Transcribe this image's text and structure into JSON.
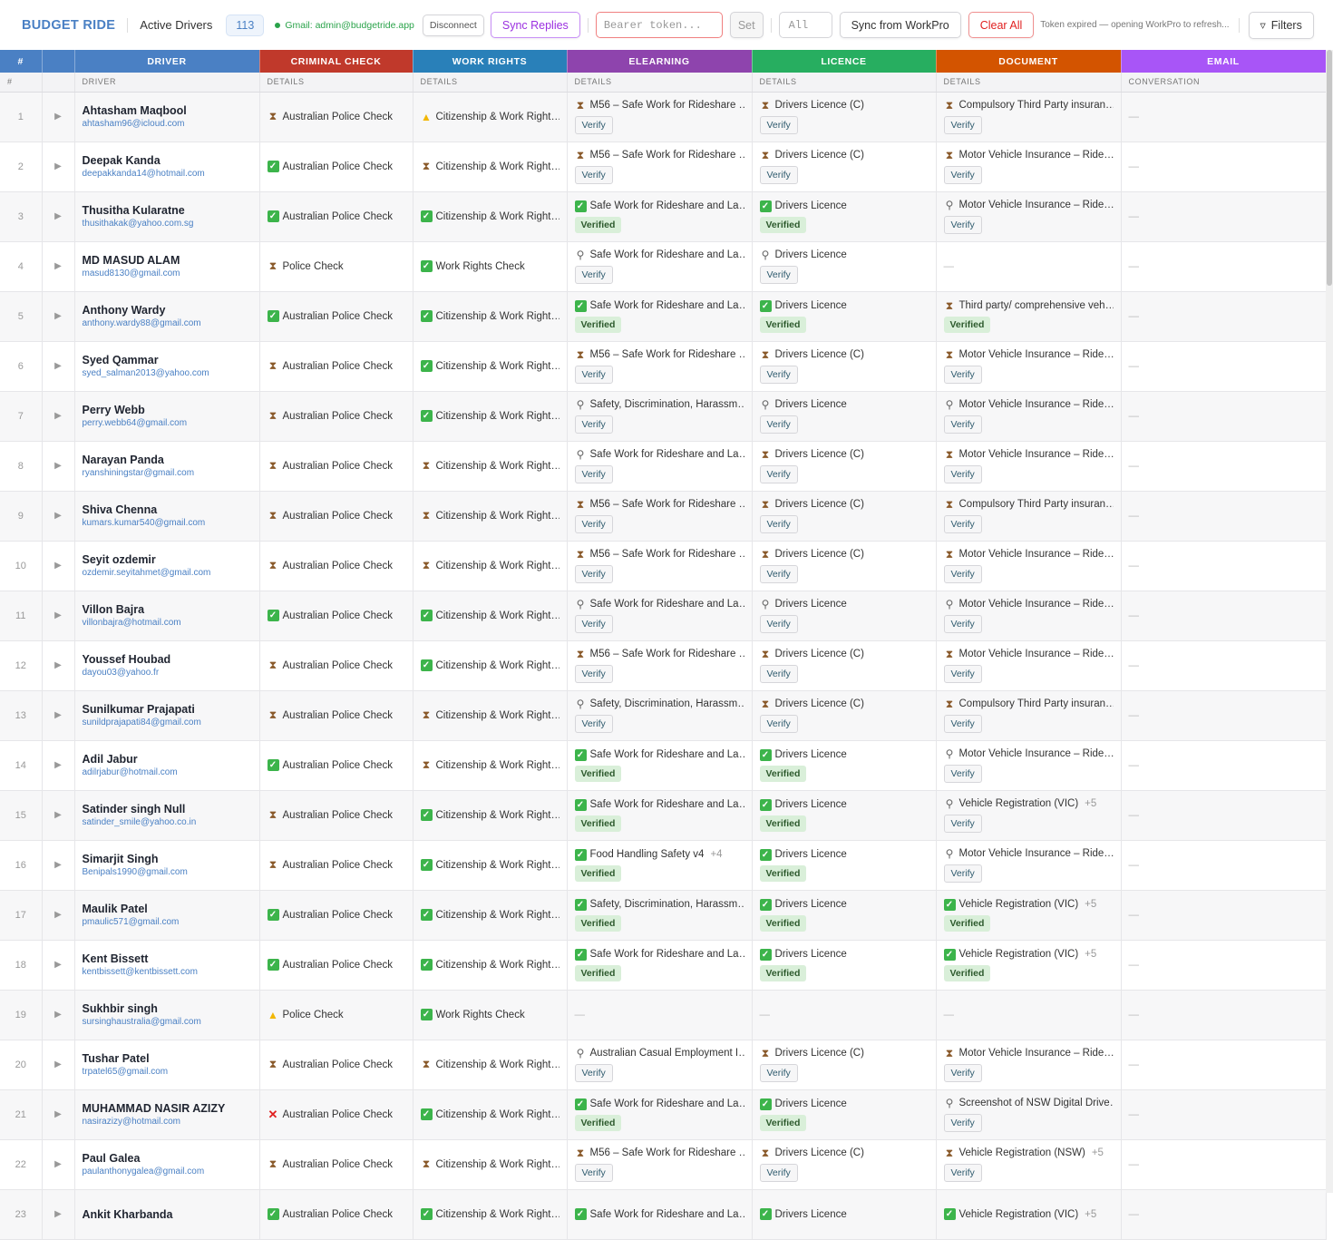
{
  "toolbar": {
    "brand": "BUDGET RIDE",
    "title": "Active Drivers",
    "count": "113",
    "gmail": "Gmail: admin@budgetride.app",
    "disconnect": "Disconnect",
    "sync_replies": "Sync Replies",
    "token_placeholder": "Bearer token...",
    "set": "Set",
    "filter_value": "All",
    "sync_workpro": "Sync from WorkPro",
    "clear_all": "Clear All",
    "status_note": "Token expired — opening WorkPro to refresh...",
    "filters": "Filters"
  },
  "colors": {
    "num": "#4a80c4",
    "driver": "#4a80c4",
    "criminal": "#c0392b",
    "work": "#2980b9",
    "elearning": "#8e44ad",
    "licence": "#27ae60",
    "document": "#d35400",
    "email": "#a855f7"
  },
  "groups": [
    "#",
    "",
    "DRIVER",
    "CRIMINAL CHECK",
    "WORK RIGHTS",
    "ELEARNING",
    "LICENCE",
    "DOCUMENT",
    "EMAIL"
  ],
  "subheaders": [
    "#",
    "",
    "DRIVER",
    "DETAILS",
    "DETAILS",
    "DETAILS",
    "DETAILS",
    "DETAILS",
    "CONVERSATION"
  ],
  "empty": "—",
  "rows": [
    {
      "n": "1",
      "name": "Ahtasham Maqbool",
      "email": "ahtasham96@icloud.com",
      "crim": {
        "s": "pending",
        "t": "Australian Police Check"
      },
      "work": {
        "s": "warn",
        "t": "Citizenship & Work Right…"
      },
      "el": {
        "s": "pending",
        "t": "M56 – Safe Work for Rideshare …",
        "a": "Verify"
      },
      "lic": {
        "s": "pending",
        "t": "Drivers Licence (C)",
        "a": "Verify"
      },
      "doc": {
        "s": "pending",
        "t": "Compulsory Third Party insuran…",
        "a": "Verify"
      }
    },
    {
      "n": "2",
      "name": "Deepak Kanda",
      "email": "deepakkanda14@hotmail.com",
      "crim": {
        "s": "ok",
        "t": "Australian Police Check"
      },
      "work": {
        "s": "pending",
        "t": "Citizenship & Work Right…"
      },
      "el": {
        "s": "pending",
        "t": "M56 – Safe Work for Rideshare …",
        "a": "Verify"
      },
      "lic": {
        "s": "pending",
        "t": "Drivers Licence (C)",
        "a": "Verify"
      },
      "doc": {
        "s": "pending",
        "t": "Motor Vehicle Insurance – Ride…",
        "a": "Verify"
      }
    },
    {
      "n": "3",
      "name": "Thusitha Kularatne",
      "email": "thusithakak@yahoo.com.sg",
      "crim": {
        "s": "ok",
        "t": "Australian Police Check"
      },
      "work": {
        "s": "ok",
        "t": "Citizenship & Work Right…"
      },
      "el": {
        "s": "ok",
        "t": "Safe Work for Rideshare and La…",
        "a": "Verified"
      },
      "lic": {
        "s": "ok",
        "t": "Drivers Licence",
        "a": "Verified"
      },
      "doc": {
        "s": "search",
        "t": "Motor Vehicle Insurance – Ride…",
        "a": "Verify"
      }
    },
    {
      "n": "4",
      "name": "MD MASUD ALAM",
      "email": "masud8130@gmail.com",
      "crim": {
        "s": "pending",
        "t": "Police Check"
      },
      "work": {
        "s": "ok",
        "t": "Work Rights Check"
      },
      "el": {
        "s": "search",
        "t": "Safe Work for Rideshare and La…",
        "a": "Verify"
      },
      "lic": {
        "s": "search",
        "t": "Drivers Licence",
        "a": "Verify"
      },
      "doc": null
    },
    {
      "n": "5",
      "name": "Anthony Wardy",
      "email": "anthony.wardy88@gmail.com",
      "crim": {
        "s": "ok",
        "t": "Australian Police Check"
      },
      "work": {
        "s": "ok",
        "t": "Citizenship & Work Right…"
      },
      "el": {
        "s": "ok",
        "t": "Safe Work for Rideshare and La…",
        "a": "Verified"
      },
      "lic": {
        "s": "ok",
        "t": "Drivers Licence",
        "a": "Verified"
      },
      "doc": {
        "s": "pending",
        "t": "Third party/ comprehensive veh…",
        "a": "Verified"
      }
    },
    {
      "n": "6",
      "name": "Syed Qammar",
      "email": "syed_salman2013@yahoo.com",
      "crim": {
        "s": "pending",
        "t": "Australian Police Check"
      },
      "work": {
        "s": "ok",
        "t": "Citizenship & Work Right…"
      },
      "el": {
        "s": "pending",
        "t": "M56 – Safe Work for Rideshare …",
        "a": "Verify"
      },
      "lic": {
        "s": "pending",
        "t": "Drivers Licence (C)",
        "a": "Verify"
      },
      "doc": {
        "s": "pending",
        "t": "Motor Vehicle Insurance – Ride…",
        "a": "Verify"
      }
    },
    {
      "n": "7",
      "name": "Perry Webb",
      "email": "perry.webb64@gmail.com",
      "crim": {
        "s": "pending",
        "t": "Australian Police Check"
      },
      "work": {
        "s": "ok",
        "t": "Citizenship & Work Right…"
      },
      "el": {
        "s": "search",
        "t": "Safety, Discrimination, Harassm…",
        "a": "Verify"
      },
      "lic": {
        "s": "search",
        "t": "Drivers Licence",
        "a": "Verify"
      },
      "doc": {
        "s": "search",
        "t": "Motor Vehicle Insurance – Ride…",
        "a": "Verify"
      }
    },
    {
      "n": "8",
      "name": "Narayan Panda",
      "email": "ryanshiningstar@gmail.com",
      "crim": {
        "s": "pending",
        "t": "Australian Police Check"
      },
      "work": {
        "s": "pending",
        "t": "Citizenship & Work Right…"
      },
      "el": {
        "s": "search",
        "t": "Safe Work for Rideshare and La…",
        "a": "Verify"
      },
      "lic": {
        "s": "pending",
        "t": "Drivers Licence (C)",
        "a": "Verify"
      },
      "doc": {
        "s": "pending",
        "t": "Motor Vehicle Insurance – Ride…",
        "a": "Verify"
      }
    },
    {
      "n": "9",
      "name": "Shiva Chenna",
      "email": "kumars.kumar540@gmail.com",
      "crim": {
        "s": "pending",
        "t": "Australian Police Check"
      },
      "work": {
        "s": "pending",
        "t": "Citizenship & Work Right…"
      },
      "el": {
        "s": "pending",
        "t": "M56 – Safe Work for Rideshare …",
        "a": "Verify"
      },
      "lic": {
        "s": "pending",
        "t": "Drivers Licence (C)",
        "a": "Verify"
      },
      "doc": {
        "s": "pending",
        "t": "Compulsory Third Party insuran…",
        "a": "Verify"
      }
    },
    {
      "n": "10",
      "name": "Seyit ozdemir",
      "email": "ozdemir.seyitahmet@gmail.com",
      "crim": {
        "s": "pending",
        "t": "Australian Police Check"
      },
      "work": {
        "s": "pending",
        "t": "Citizenship & Work Right…"
      },
      "el": {
        "s": "pending",
        "t": "M56 – Safe Work for Rideshare …",
        "a": "Verify"
      },
      "lic": {
        "s": "pending",
        "t": "Drivers Licence (C)",
        "a": "Verify"
      },
      "doc": {
        "s": "pending",
        "t": "Motor Vehicle Insurance – Ride…",
        "a": "Verify"
      }
    },
    {
      "n": "11",
      "name": "Villon Bajra",
      "email": "villonbajra@hotmail.com",
      "crim": {
        "s": "ok",
        "t": "Australian Police Check"
      },
      "work": {
        "s": "ok",
        "t": "Citizenship & Work Right…"
      },
      "el": {
        "s": "search",
        "t": "Safe Work for Rideshare and La…",
        "a": "Verify"
      },
      "lic": {
        "s": "search",
        "t": "Drivers Licence",
        "a": "Verify"
      },
      "doc": {
        "s": "search",
        "t": "Motor Vehicle Insurance – Ride…",
        "a": "Verify"
      }
    },
    {
      "n": "12",
      "name": "Youssef Houbad",
      "email": "dayou03@yahoo.fr",
      "crim": {
        "s": "pending",
        "t": "Australian Police Check"
      },
      "work": {
        "s": "ok",
        "t": "Citizenship & Work Right…"
      },
      "el": {
        "s": "pending",
        "t": "M56 – Safe Work for Rideshare …",
        "a": "Verify"
      },
      "lic": {
        "s": "pending",
        "t": "Drivers Licence (C)",
        "a": "Verify"
      },
      "doc": {
        "s": "pending",
        "t": "Motor Vehicle Insurance – Ride…",
        "a": "Verify"
      }
    },
    {
      "n": "13",
      "name": "Sunilkumar Prajapati",
      "email": "sunildprajapati84@gmail.com",
      "crim": {
        "s": "pending",
        "t": "Australian Police Check"
      },
      "work": {
        "s": "pending",
        "t": "Citizenship & Work Right…"
      },
      "el": {
        "s": "search",
        "t": "Safety, Discrimination, Harassm…",
        "a": "Verify"
      },
      "lic": {
        "s": "pending",
        "t": "Drivers Licence (C)",
        "a": "Verify"
      },
      "doc": {
        "s": "pending",
        "t": "Compulsory Third Party insuran…",
        "a": "Verify"
      }
    },
    {
      "n": "14",
      "name": "Adil Jabur",
      "email": "adilrjabur@hotmail.com",
      "crim": {
        "s": "ok",
        "t": "Australian Police Check"
      },
      "work": {
        "s": "pending",
        "t": "Citizenship & Work Right…"
      },
      "el": {
        "s": "ok",
        "t": "Safe Work for Rideshare and La…",
        "a": "Verified"
      },
      "lic": {
        "s": "ok",
        "t": "Drivers Licence",
        "a": "Verified"
      },
      "doc": {
        "s": "search",
        "t": "Motor Vehicle Insurance – Ride…",
        "a": "Verify"
      }
    },
    {
      "n": "15",
      "name": "Satinder singh Null",
      "email": "satinder_smile@yahoo.co.in",
      "crim": {
        "s": "pending",
        "t": "Australian Police Check"
      },
      "work": {
        "s": "ok",
        "t": "Citizenship & Work Right…"
      },
      "el": {
        "s": "ok",
        "t": "Safe Work for Rideshare and La…",
        "a": "Verified"
      },
      "lic": {
        "s": "ok",
        "t": "Drivers Licence",
        "a": "Verified"
      },
      "doc": {
        "s": "search",
        "t": "Vehicle Registration (VIC)",
        "m": "+5",
        "a": "Verify"
      }
    },
    {
      "n": "16",
      "name": "Simarjit Singh",
      "email": "Benipals1990@gmail.com",
      "crim": {
        "s": "pending",
        "t": "Australian Police Check"
      },
      "work": {
        "s": "ok",
        "t": "Citizenship & Work Right…"
      },
      "el": {
        "s": "ok",
        "t": "Food Handling Safety v4",
        "m": "+4",
        "a": "Verified"
      },
      "lic": {
        "s": "ok",
        "t": "Drivers Licence",
        "a": "Verified"
      },
      "doc": {
        "s": "search",
        "t": "Motor Vehicle Insurance – Ride…",
        "a": "Verify"
      }
    },
    {
      "n": "17",
      "name": "Maulik Patel",
      "email": "pmaulic571@gmail.com",
      "crim": {
        "s": "ok",
        "t": "Australian Police Check"
      },
      "work": {
        "s": "ok",
        "t": "Citizenship & Work Right…"
      },
      "el": {
        "s": "ok",
        "t": "Safety, Discrimination, Harassm…",
        "a": "Verified"
      },
      "lic": {
        "s": "ok",
        "t": "Drivers Licence",
        "a": "Verified"
      },
      "doc": {
        "s": "ok",
        "t": "Vehicle Registration (VIC)",
        "m": "+5",
        "a": "Verified"
      }
    },
    {
      "n": "18",
      "name": "Kent Bissett",
      "email": "kentbissett@kentbissett.com",
      "crim": {
        "s": "ok",
        "t": "Australian Police Check"
      },
      "work": {
        "s": "ok",
        "t": "Citizenship & Work Right…"
      },
      "el": {
        "s": "ok",
        "t": "Safe Work for Rideshare and La…",
        "a": "Verified"
      },
      "lic": {
        "s": "ok",
        "t": "Drivers Licence",
        "a": "Verified"
      },
      "doc": {
        "s": "ok",
        "t": "Vehicle Registration (VIC)",
        "m": "+5",
        "a": "Verified"
      }
    },
    {
      "n": "19",
      "name": "Sukhbir singh",
      "email": "sursinghaustralia@gmail.com",
      "crim": {
        "s": "warn",
        "t": "Police Check"
      },
      "work": {
        "s": "ok",
        "t": "Work Rights Check"
      },
      "el": null,
      "lic": null,
      "doc": null
    },
    {
      "n": "20",
      "name": "Tushar Patel",
      "email": "trpatel65@gmail.com",
      "crim": {
        "s": "pending",
        "t": "Australian Police Check"
      },
      "work": {
        "s": "pending",
        "t": "Citizenship & Work Right…"
      },
      "el": {
        "s": "search",
        "t": "Australian Casual Employment I…",
        "a": "Verify"
      },
      "lic": {
        "s": "pending",
        "t": "Drivers Licence (C)",
        "a": "Verify"
      },
      "doc": {
        "s": "pending",
        "t": "Motor Vehicle Insurance – Ride…",
        "a": "Verify"
      }
    },
    {
      "n": "21",
      "name": "MUHAMMAD NASIR AZIZY",
      "email": "nasirazizy@hotmail.com",
      "crim": {
        "s": "fail",
        "t": "Australian Police Check"
      },
      "work": {
        "s": "ok",
        "t": "Citizenship & Work Right…"
      },
      "el": {
        "s": "ok",
        "t": "Safe Work for Rideshare and La…",
        "a": "Verified"
      },
      "lic": {
        "s": "ok",
        "t": "Drivers Licence",
        "a": "Verified"
      },
      "doc": {
        "s": "search",
        "t": "Screenshot of NSW Digital Drive…",
        "a": "Verify"
      }
    },
    {
      "n": "22",
      "name": "Paul Galea",
      "email": "paulanthonygalea@gmail.com",
      "crim": {
        "s": "pending",
        "t": "Australian Police Check"
      },
      "work": {
        "s": "pending",
        "t": "Citizenship & Work Right…"
      },
      "el": {
        "s": "pending",
        "t": "M56 – Safe Work for Rideshare …",
        "a": "Verify"
      },
      "lic": {
        "s": "pending",
        "t": "Drivers Licence (C)",
        "a": "Verify"
      },
      "doc": {
        "s": "pending",
        "t": "Vehicle Registration (NSW)",
        "m": "+5",
        "a": "Verify"
      }
    },
    {
      "n": "23",
      "name": "Ankit Kharbanda",
      "crim": {
        "s": "ok",
        "t": "Australian Police Check"
      },
      "work": {
        "s": "ok",
        "t": "Citizenship & Work Right…"
      },
      "el": {
        "s": "ok",
        "t": "Safe Work for Rideshare and La…"
      },
      "lic": {
        "s": "ok",
        "t": "Drivers Licence"
      },
      "doc": {
        "s": "ok",
        "t": "Vehicle Registration (VIC)",
        "m": "+5"
      }
    }
  ]
}
